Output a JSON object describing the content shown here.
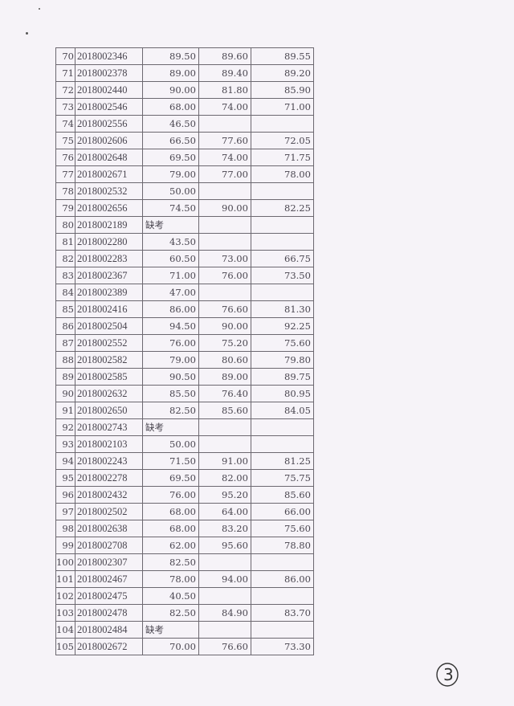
{
  "table": {
    "rows": [
      [
        "70",
        "2018002346",
        "89.50",
        "89.60",
        "89.55"
      ],
      [
        "71",
        "2018002378",
        "89.00",
        "89.40",
        "89.20"
      ],
      [
        "72",
        "2018002440",
        "90.00",
        "81.80",
        "85.90"
      ],
      [
        "73",
        "2018002546",
        "68.00",
        "74.00",
        "71.00"
      ],
      [
        "74",
        "2018002556",
        "46.50",
        "",
        ""
      ],
      [
        "75",
        "2018002606",
        "66.50",
        "77.60",
        "72.05"
      ],
      [
        "76",
        "2018002648",
        "69.50",
        "74.00",
        "71.75"
      ],
      [
        "77",
        "2018002671",
        "79.00",
        "77.00",
        "78.00"
      ],
      [
        "78",
        "2018002532",
        "50.00",
        "",
        ""
      ],
      [
        "79",
        "2018002656",
        "74.50",
        "90.00",
        "82.25"
      ],
      [
        "80",
        "2018002189",
        "缺考",
        "",
        ""
      ],
      [
        "81",
        "2018002280",
        "43.50",
        "",
        ""
      ],
      [
        "82",
        "2018002283",
        "60.50",
        "73.00",
        "66.75"
      ],
      [
        "83",
        "2018002367",
        "71.00",
        "76.00",
        "73.50"
      ],
      [
        "84",
        "2018002389",
        "47.00",
        "",
        ""
      ],
      [
        "85",
        "2018002416",
        "86.00",
        "76.60",
        "81.30"
      ],
      [
        "86",
        "2018002504",
        "94.50",
        "90.00",
        "92.25"
      ],
      [
        "87",
        "2018002552",
        "76.00",
        "75.20",
        "75.60"
      ],
      [
        "88",
        "2018002582",
        "79.00",
        "80.60",
        "79.80"
      ],
      [
        "89",
        "2018002585",
        "90.50",
        "89.00",
        "89.75"
      ],
      [
        "90",
        "2018002632",
        "85.50",
        "76.40",
        "80.95"
      ],
      [
        "91",
        "2018002650",
        "82.50",
        "85.60",
        "84.05"
      ],
      [
        "92",
        "2018002743",
        "缺考",
        "",
        ""
      ],
      [
        "93",
        "2018002103",
        "50.00",
        "",
        ""
      ],
      [
        "94",
        "2018002243",
        "71.50",
        "91.00",
        "81.25"
      ],
      [
        "95",
        "2018002278",
        "69.50",
        "82.00",
        "75.75"
      ],
      [
        "96",
        "2018002432",
        "76.00",
        "95.20",
        "85.60"
      ],
      [
        "97",
        "2018002502",
        "68.00",
        "64.00",
        "66.00"
      ],
      [
        "98",
        "2018002638",
        "68.00",
        "83.20",
        "75.60"
      ],
      [
        "99",
        "2018002708",
        "62.00",
        "95.60",
        "78.80"
      ],
      [
        "100",
        "2018002307",
        "82.50",
        "",
        ""
      ],
      [
        "101",
        "2018002467",
        "78.00",
        "94.00",
        "86.00"
      ],
      [
        "102",
        "2018002475",
        "40.50",
        "",
        ""
      ],
      [
        "103",
        "2018002478",
        "82.50",
        "84.90",
        "83.70"
      ],
      [
        "104",
        "2018002484",
        "缺考",
        "",
        ""
      ],
      [
        "105",
        "2018002672",
        "70.00",
        "76.60",
        "73.30"
      ]
    ]
  },
  "page_number": "3"
}
